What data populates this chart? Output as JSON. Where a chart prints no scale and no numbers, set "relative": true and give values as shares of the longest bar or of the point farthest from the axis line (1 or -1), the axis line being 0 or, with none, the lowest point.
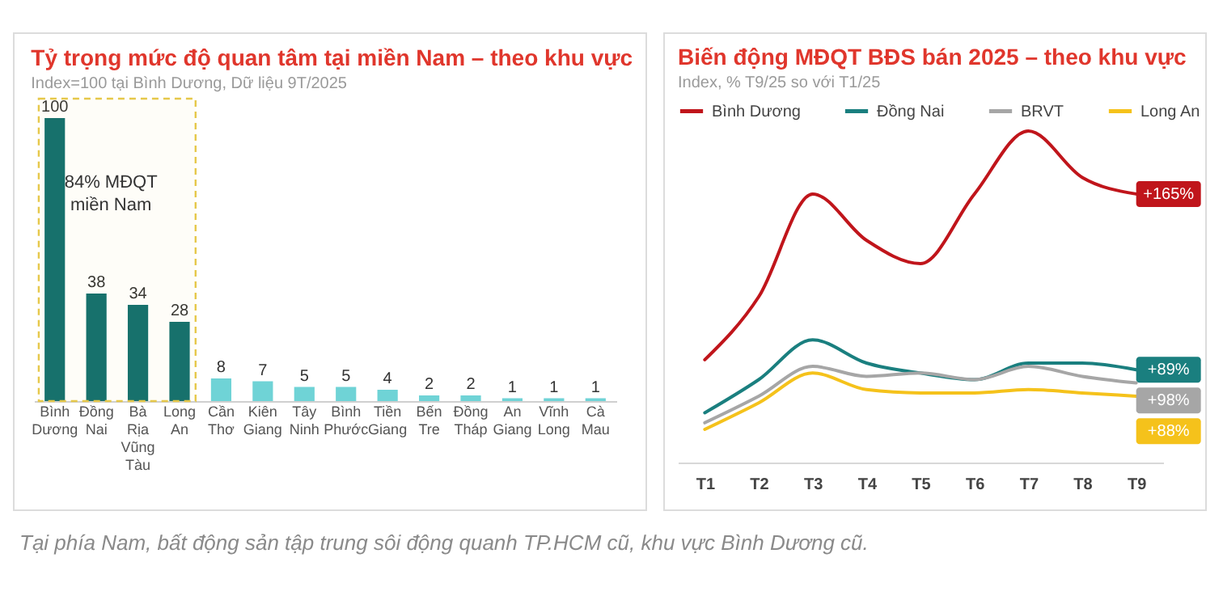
{
  "chart_data": [
    {
      "type": "bar",
      "title": "Tỷ trọng mức độ quan tâm tại miền Nam – theo khu vực",
      "subtitle": "Index=100 tại Bình Dương, Dữ liệu 9T/2025",
      "categories": [
        "Bình Dương",
        "Đồng Nai",
        "Bà Rịa Vũng Tàu",
        "Long An",
        "Cần Thơ",
        "Kiên Giang",
        "Tây Ninh",
        "Bình Phước",
        "Tiền Giang",
        "Bến Tre",
        "Đồng Tháp",
        "An Giang",
        "Vĩnh Long",
        "Cà Mau"
      ],
      "values": [
        100,
        38,
        34,
        28,
        8,
        7,
        5,
        5,
        4,
        2,
        2,
        1,
        1,
        1
      ],
      "colors": [
        "#0f6e6e",
        "#0f6e6e",
        "#0f6e6e",
        "#0f6e6e",
        "#6fd3d6",
        "#6fd3d6",
        "#6fd3d6",
        "#6fd3d6",
        "#6fd3d6",
        "#6fd3d6",
        "#6fd3d6",
        "#6fd3d6",
        "#6fd3d6",
        "#6fd3d6"
      ],
      "data_labels": true,
      "tick_labels": "x",
      "bands": [
        {
          "axis": "x",
          "from": "Bình Dương",
          "to": "Long An",
          "label": "84% MĐQT miền Nam",
          "color": "#e6c84a"
        }
      ],
      "annotations": [
        "Tại phía Nam, bất động sản tập trung sôi động quanh TP.HCM cũ, khu vực Bình Dương cũ."
      ]
    },
    {
      "type": "line",
      "title": "Biến động MĐQT BĐS bán 2025 – theo khu vực",
      "subtitle": "Index, %  T9/25 so với T1/25",
      "relative": true,
      "legend": "top",
      "categories": [
        "T1",
        "T2",
        "T3",
        "T4",
        "T5",
        "T6",
        "T7",
        "T8",
        "T9"
      ],
      "series": [
        {
          "name": "Bình Dương",
          "color": "#c0151b",
          "values": [
            0.31,
            0.5,
            0.81,
            0.67,
            0.6,
            0.81,
            1,
            0.86,
            0.81
          ]
        },
        {
          "name": "Đồng Nai",
          "color": "#1a7f7f",
          "values": [
            0.15,
            0.25,
            0.37,
            0.3,
            0.27,
            0.25,
            0.3,
            0.3,
            0.28
          ]
        },
        {
          "name": "BRVT",
          "color": "#a6a6a6",
          "values": [
            0.12,
            0.2,
            0.29,
            0.26,
            0.27,
            0.25,
            0.29,
            0.26,
            0.24
          ]
        },
        {
          "name": "Long An",
          "color": "#f5c21b",
          "values": [
            0.1,
            0.18,
            0.27,
            0.22,
            0.21,
            0.21,
            0.22,
            0.21,
            0.2
          ]
        }
      ],
      "annotations": [
        {
          "text": "+165%",
          "x": "T9",
          "y": 0.81
        },
        {
          "text": "+89%",
          "x": "T9",
          "y": 0.28
        },
        {
          "text": "+98%",
          "x": "T9",
          "y": 0.24
        },
        {
          "text": "+88%",
          "x": "T9",
          "y": 0.2
        }
      ]
    }
  ]
}
